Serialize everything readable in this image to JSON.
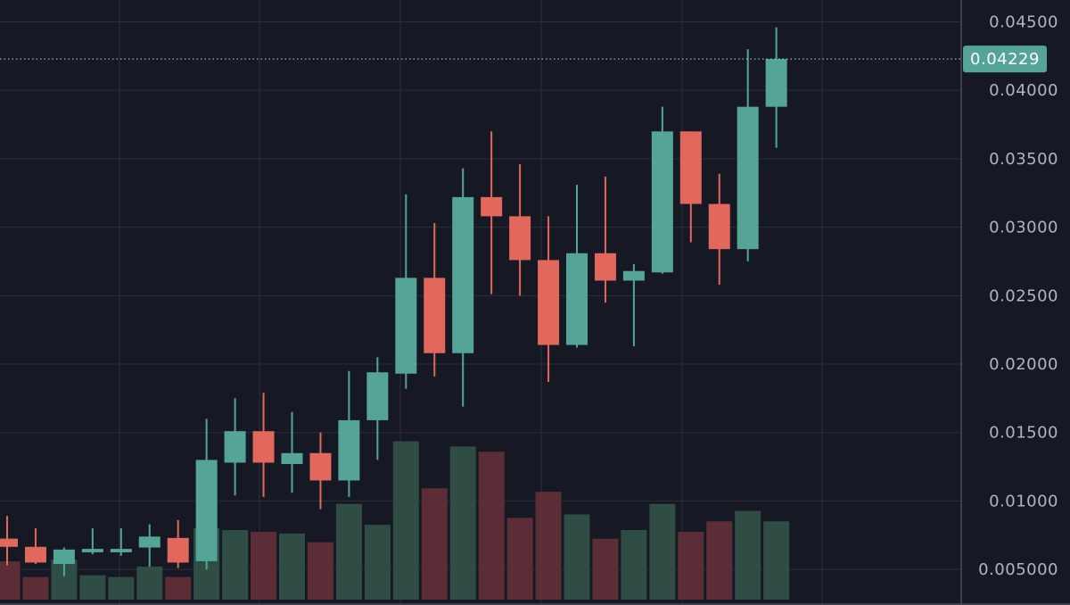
{
  "chart_data": {
    "type": "candlestick",
    "title": "",
    "xlabel": "",
    "ylabel": "",
    "ylim": [
      0.0024,
      0.0466
    ],
    "grid": true,
    "price_scale_side": "right",
    "y_ticks": [
      "0.04500",
      "0.04000",
      "0.03500",
      "0.03000",
      "0.02500",
      "0.02000",
      "0.01500",
      "0.01000",
      "0.005000"
    ],
    "last_price": {
      "value": 0.04229,
      "label": "0.04229"
    },
    "colors": {
      "background": "#161924",
      "grid": "#2a2e39",
      "up": "#54a597",
      "down": "#e2675d",
      "volume_up": "#2f4d45",
      "volume_down": "#5c2d36",
      "axis_text": "#b2b5be",
      "last_price_line": "#7fc9bd",
      "last_price_tag": "#54a597"
    },
    "candles": [
      {
        "open": 0.00725,
        "high": 0.0089,
        "low": 0.0053,
        "close": 0.00665
      },
      {
        "open": 0.00665,
        "high": 0.008,
        "low": 0.0054,
        "close": 0.0055
      },
      {
        "open": 0.0054,
        "high": 0.0066,
        "low": 0.0045,
        "close": 0.00645
      },
      {
        "open": 0.00625,
        "high": 0.008,
        "low": 0.0061,
        "close": 0.0065
      },
      {
        "open": 0.00625,
        "high": 0.008,
        "low": 0.006,
        "close": 0.0065
      },
      {
        "open": 0.0066,
        "high": 0.0083,
        "low": 0.0052,
        "close": 0.0074
      },
      {
        "open": 0.0073,
        "high": 0.0086,
        "low": 0.0051,
        "close": 0.0055
      },
      {
        "open": 0.0056,
        "high": 0.016,
        "low": 0.005,
        "close": 0.013
      },
      {
        "open": 0.0128,
        "high": 0.0175,
        "low": 0.0104,
        "close": 0.0151
      },
      {
        "open": 0.0151,
        "high": 0.0179,
        "low": 0.0103,
        "close": 0.0128
      },
      {
        "open": 0.0127,
        "high": 0.0165,
        "low": 0.0106,
        "close": 0.0135
      },
      {
        "open": 0.0135,
        "high": 0.015,
        "low": 0.0094,
        "close": 0.0115
      },
      {
        "open": 0.0115,
        "high": 0.0195,
        "low": 0.0103,
        "close": 0.0159
      },
      {
        "open": 0.0159,
        "high": 0.0205,
        "low": 0.013,
        "close": 0.0194
      },
      {
        "open": 0.0193,
        "high": 0.0324,
        "low": 0.0182,
        "close": 0.0263
      },
      {
        "open": 0.0263,
        "high": 0.0303,
        "low": 0.0191,
        "close": 0.0208
      },
      {
        "open": 0.0208,
        "high": 0.0343,
        "low": 0.0169,
        "close": 0.0322
      },
      {
        "open": 0.0322,
        "high": 0.037,
        "low": 0.0251,
        "close": 0.0308
      },
      {
        "open": 0.0308,
        "high": 0.0346,
        "low": 0.025,
        "close": 0.0276
      },
      {
        "open": 0.0276,
        "high": 0.0308,
        "low": 0.0187,
        "close": 0.0214
      },
      {
        "open": 0.0214,
        "high": 0.0331,
        "low": 0.0212,
        "close": 0.0281
      },
      {
        "open": 0.0281,
        "high": 0.0337,
        "low": 0.0245,
        "close": 0.0261
      },
      {
        "open": 0.0261,
        "high": 0.0273,
        "low": 0.0213,
        "close": 0.0268
      },
      {
        "open": 0.0267,
        "high": 0.0388,
        "low": 0.0266,
        "close": 0.037
      },
      {
        "open": 0.037,
        "high": 0.037,
        "low": 0.0289,
        "close": 0.0317
      },
      {
        "open": 0.0317,
        "high": 0.0339,
        "low": 0.0258,
        "close": 0.0284
      },
      {
        "open": 0.0284,
        "high": 0.043,
        "low": 0.0275,
        "close": 0.0388
      },
      {
        "open": 0.0388,
        "high": 0.0446,
        "low": 0.0358,
        "close": 0.04229
      }
    ],
    "volume": {
      "scale_max": 1.0,
      "values": [
        0.22,
        0.13,
        0.23,
        0.14,
        0.13,
        0.19,
        0.13,
        0.41,
        0.4,
        0.39,
        0.38,
        0.33,
        0.55,
        0.43,
        0.91,
        0.64,
        0.88,
        0.85,
        0.47,
        0.62,
        0.49,
        0.35,
        0.4,
        0.55,
        0.39,
        0.45,
        0.51,
        0.45
      ]
    }
  }
}
